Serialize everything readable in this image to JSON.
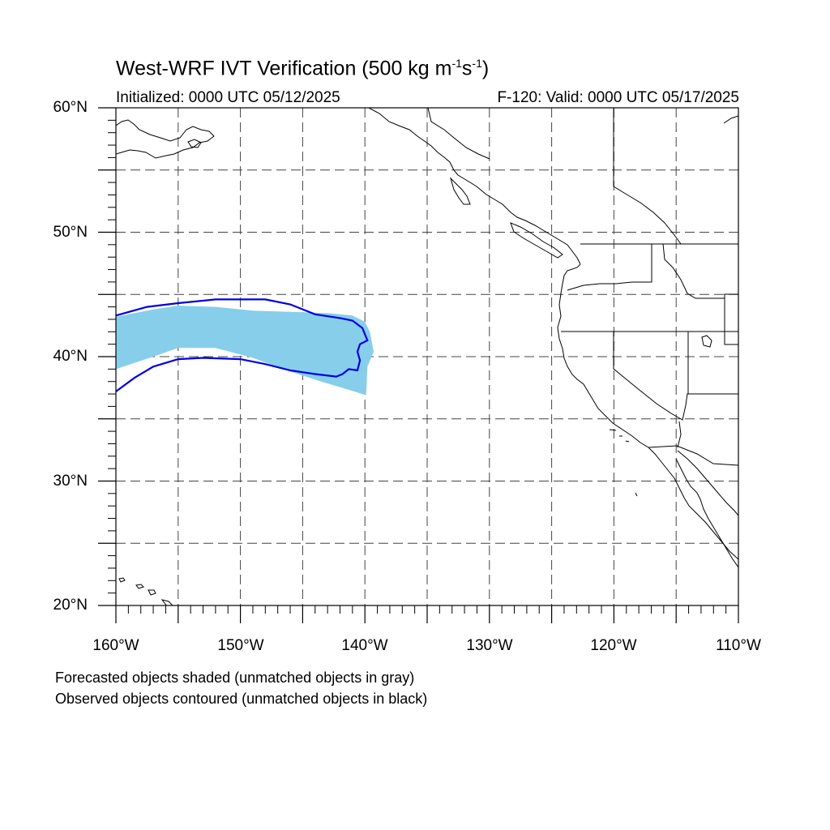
{
  "title": {
    "main": "West-WRF IVT Verification (500 kg m",
    "sup1": "-1",
    "mid": "s",
    "sup2": "-1",
    "end": ")"
  },
  "subtitle": {
    "initialized": "Initialized: 0000 UTC 05/12/2025",
    "valid": "F-120: Valid: 0000 UTC 05/17/2025"
  },
  "axes": {
    "lat_labels": [
      "60°N",
      "50°N",
      "40°N",
      "30°N",
      "20°N"
    ],
    "lon_labels": [
      "160°W",
      "150°W",
      "140°W",
      "130°W",
      "120°W",
      "110°W"
    ],
    "lat_range": [
      20,
      60
    ],
    "lon_range": [
      -160,
      -110
    ],
    "grid": "dashed, every 5 degrees"
  },
  "legend": {
    "line1": "Forecasted objects shaded (unmatched objects in gray)",
    "line2": "Observed objects contoured (unmatched objects in black)"
  },
  "colors": {
    "forecast_fill": "#87ceeb",
    "observed_contour": "#0000e6",
    "coastline": "#000000",
    "grid": "#444444"
  },
  "objects": {
    "forecast": {
      "lonlat": [
        [
          -160,
          43.2
        ],
        [
          -157,
          43.8
        ],
        [
          -155,
          44.1
        ],
        [
          -152,
          44.0
        ],
        [
          -149,
          43.7
        ],
        [
          -146,
          43.6
        ],
        [
          -143,
          43.5
        ],
        [
          -141,
          43.3
        ],
        [
          -140,
          42.8
        ],
        [
          -139.6,
          42.0
        ],
        [
          -139.3,
          40.4
        ],
        [
          -139.8,
          39.2
        ],
        [
          -139.9,
          36.9
        ],
        [
          -141.2,
          37.3
        ],
        [
          -143.5,
          38.0
        ],
        [
          -146,
          38.8
        ],
        [
          -149,
          39.9
        ],
        [
          -152,
          40.7
        ],
        [
          -155,
          40.7
        ],
        [
          -157,
          40.0
        ],
        [
          -160,
          39.0
        ]
      ]
    },
    "observed": {
      "lonlat": [
        [
          -160,
          43.3
        ],
        [
          -157.5,
          44.0
        ],
        [
          -155,
          44.3
        ],
        [
          -152,
          44.6
        ],
        [
          -148,
          44.6
        ],
        [
          -146,
          44.2
        ],
        [
          -144,
          43.4
        ],
        [
          -142,
          43.1
        ],
        [
          -141,
          42.9
        ],
        [
          -140.2,
          42.3
        ],
        [
          -139.8,
          41.3
        ],
        [
          -140.4,
          41.0
        ],
        [
          -140.6,
          40.4
        ],
        [
          -140.4,
          39.7
        ],
        [
          -140.6,
          38.9
        ],
        [
          -141.3,
          39.0
        ],
        [
          -141.8,
          38.6
        ],
        [
          -142.3,
          38.4
        ],
        [
          -144,
          38.6
        ],
        [
          -146,
          38.9
        ],
        [
          -148,
          39.4
        ],
        [
          -150,
          39.8
        ],
        [
          -153,
          39.9
        ],
        [
          -155,
          39.8
        ],
        [
          -157,
          39.2
        ],
        [
          -158.5,
          38.3
        ],
        [
          -160,
          37.2
        ]
      ]
    }
  }
}
